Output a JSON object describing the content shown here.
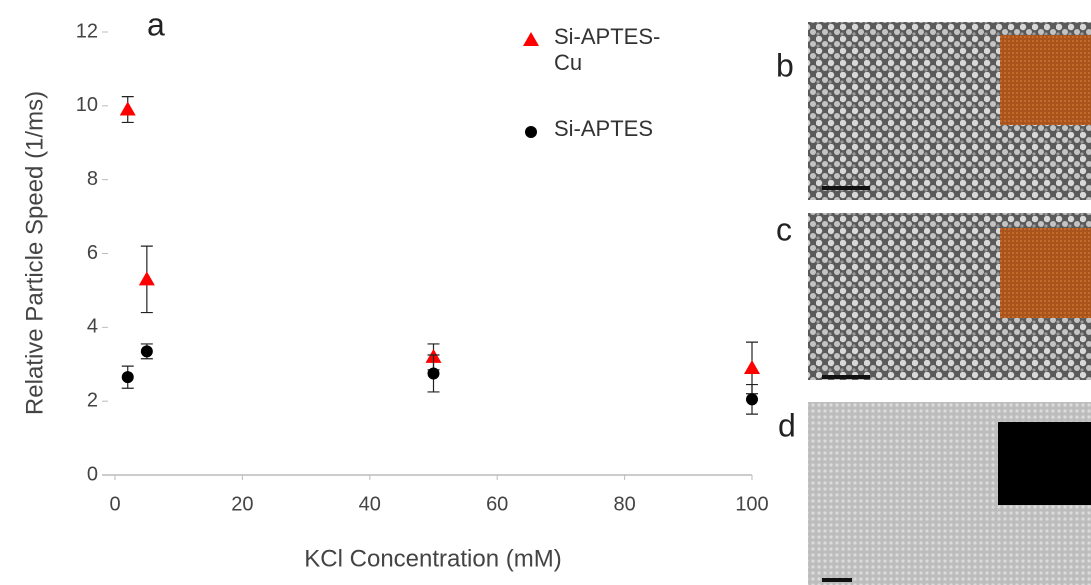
{
  "chart_data": {
    "type": "scatter",
    "panel_label": "a",
    "x_label": "KCl Concentration (mM)",
    "y_label": "Relative Particle Speed (1/ms)",
    "xlim": [
      0,
      100
    ],
    "xticks": [
      0,
      20,
      40,
      60,
      80,
      100
    ],
    "ylim": [
      0,
      12
    ],
    "yticks": [
      0,
      2,
      4,
      6,
      8,
      10,
      12
    ],
    "x": [
      2,
      5,
      50,
      100
    ],
    "series": [
      {
        "name": "Si-APTES-Cu",
        "color": "#ff0000",
        "marker": "triangle",
        "values": [
          9.9,
          5.3,
          3.2,
          2.9
        ],
        "errors": [
          0.35,
          0.9,
          0.35,
          0.7
        ]
      },
      {
        "name": "Si-APTES",
        "color": "#000000",
        "marker": "circle",
        "values": [
          2.65,
          3.35,
          2.75,
          2.05
        ],
        "errors": [
          0.3,
          0.2,
          0.5,
          0.4
        ]
      }
    ]
  },
  "images": [
    {
      "label": "b"
    },
    {
      "label": "c"
    },
    {
      "label": "d"
    }
  ]
}
